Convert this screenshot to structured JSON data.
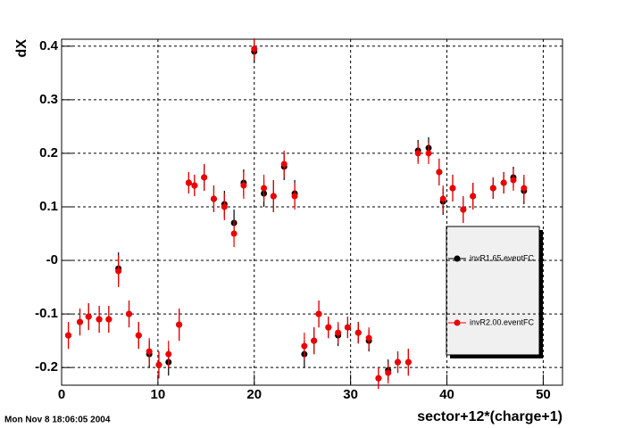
{
  "chart_data": {
    "type": "scatter",
    "x_label": "sector+12*(charge+1)",
    "y_label": "dX",
    "footer": "Mon Nov  8 18:06:05 2004",
    "x": [
      0.7,
      1.9,
      2.8,
      3.9,
      4.9,
      5.9,
      7.0,
      8.0,
      9.1,
      10.1,
      11.1,
      12.2,
      13.2,
      13.8,
      14.8,
      15.8,
      16.9,
      17.9,
      18.9,
      20.0,
      21.0,
      22.0,
      23.1,
      24.2,
      25.2,
      26.2,
      26.7,
      27.7,
      28.7,
      29.7,
      30.8,
      31.9,
      32.9,
      33.9,
      34.9,
      36.0,
      37.0,
      38.1,
      39.2,
      39.6,
      40.6,
      41.7,
      42.7,
      44.8,
      45.9,
      46.9,
      48.0
    ],
    "series": [
      {
        "name": "invR1.65.eventFC",
        "color": "#000000",
        "values": [
          -0.14,
          -0.115,
          -0.105,
          -0.11,
          -0.11,
          -0.015,
          -0.1,
          -0.14,
          -0.175,
          -0.195,
          -0.19,
          -0.12,
          0.145,
          0.14,
          0.155,
          0.115,
          0.105,
          0.07,
          0.145,
          0.39,
          0.125,
          0.12,
          0.175,
          0.125,
          -0.175,
          -0.15,
          -0.1,
          -0.125,
          -0.14,
          -0.125,
          -0.135,
          -0.15,
          -0.22,
          -0.205,
          -0.19,
          -0.19,
          0.205,
          0.21,
          0.165,
          0.11,
          0.135,
          0.095,
          0.12,
          0.135,
          0.145,
          0.155,
          0.13
        ],
        "errors": [
          0.025,
          0.025,
          0.025,
          0.025,
          0.025,
          0.03,
          0.025,
          0.025,
          0.025,
          0.025,
          0.025,
          0.03,
          0.02,
          0.02,
          0.025,
          0.025,
          0.025,
          0.025,
          0.025,
          0.02,
          0.025,
          0.03,
          0.025,
          0.025,
          0.025,
          0.025,
          0.025,
          0.02,
          0.02,
          0.02,
          0.02,
          0.02,
          0.02,
          0.02,
          0.02,
          0.025,
          0.02,
          0.02,
          0.025,
          0.025,
          0.025,
          0.025,
          0.025,
          0.02,
          0.02,
          0.02,
          0.025
        ]
      },
      {
        "name": "invR2.00.eventFC",
        "color": "#ee0000",
        "values": [
          -0.14,
          -0.115,
          -0.105,
          -0.11,
          -0.11,
          -0.02,
          -0.1,
          -0.14,
          -0.17,
          -0.195,
          -0.175,
          -0.12,
          0.145,
          0.14,
          0.155,
          0.115,
          0.1,
          0.05,
          0.14,
          0.395,
          0.135,
          0.12,
          0.18,
          0.12,
          -0.16,
          -0.15,
          -0.1,
          -0.125,
          -0.135,
          -0.125,
          -0.135,
          -0.145,
          -0.22,
          -0.21,
          -0.19,
          -0.19,
          0.2,
          0.2,
          0.165,
          0.115,
          0.135,
          0.095,
          0.12,
          0.135,
          0.145,
          0.15,
          0.135
        ],
        "errors": [
          0.025,
          0.025,
          0.025,
          0.025,
          0.025,
          0.03,
          0.025,
          0.025,
          0.025,
          0.025,
          0.025,
          0.03,
          0.02,
          0.02,
          0.025,
          0.025,
          0.025,
          0.025,
          0.025,
          0.02,
          0.025,
          0.03,
          0.025,
          0.025,
          0.025,
          0.025,
          0.025,
          0.02,
          0.02,
          0.02,
          0.02,
          0.02,
          0.02,
          0.02,
          0.02,
          0.025,
          0.02,
          0.02,
          0.025,
          0.025,
          0.025,
          0.025,
          0.025,
          0.02,
          0.02,
          0.02,
          0.025
        ]
      }
    ],
    "xlim": [
      0,
      52
    ],
    "xticks": [
      0,
      10,
      20,
      30,
      40,
      50
    ],
    "ylim": [
      -0.233,
      0.413
    ],
    "yticks": [
      -0.2,
      -0.1,
      {
        "value": 0,
        "label": "-0"
      },
      0.1,
      0.2,
      0.3,
      0.4
    ],
    "grid": true
  }
}
